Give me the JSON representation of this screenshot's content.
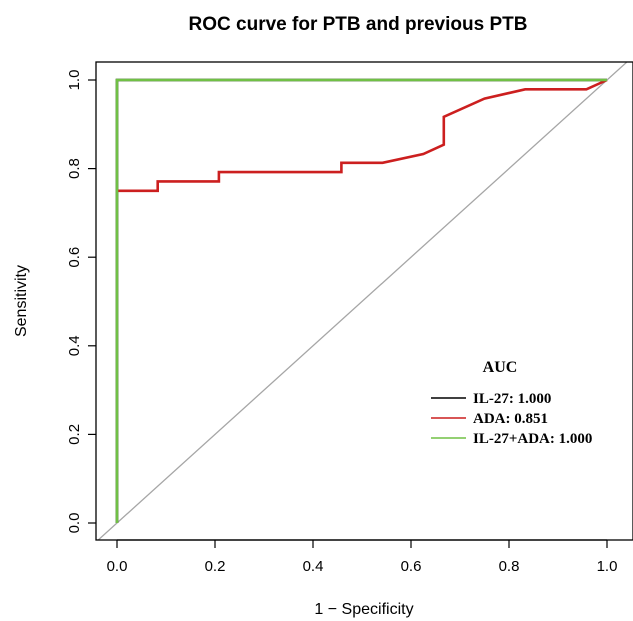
{
  "chart_data": {
    "type": "line",
    "title": "ROC curve for PTB and previous PTB",
    "xlabel": "1 − Specificity",
    "ylabel": "Sensitivity",
    "xlim": [
      -0.04,
      1.04
    ],
    "ylim": [
      -0.04,
      1.04
    ],
    "x_ticks": [
      0.0,
      0.2,
      0.4,
      0.6,
      0.8,
      1.0
    ],
    "y_ticks": [
      0.0,
      0.2,
      0.4,
      0.6,
      0.8,
      1.0
    ],
    "x_tick_labels": [
      "0.0",
      "0.2",
      "0.4",
      "0.6",
      "0.8",
      "1.0"
    ],
    "y_tick_labels": [
      "0.0",
      "0.2",
      "0.4",
      "0.6",
      "0.8",
      "1.0"
    ],
    "reference_line": {
      "color": "#a6a6a6"
    },
    "legend": {
      "title": "AUC",
      "position": "bottom-right",
      "entries": [
        {
          "label": "IL-27: 1.000",
          "color": "#000000"
        },
        {
          "label": "ADA: 0.851",
          "color": "#cc1f1f"
        },
        {
          "label": "IL-27+ADA: 1.000",
          "color": "#70c045"
        }
      ]
    },
    "series": [
      {
        "color": "#000000",
        "x": [
          0,
          0,
          1
        ],
        "y": [
          0,
          1,
          1
        ]
      },
      {
        "color": "#cc1f1f",
        "x": [
          0,
          0.083,
          0.083,
          0.208,
          0.208,
          0.458,
          0.458,
          0.542,
          0.625,
          0.667,
          0.667,
          0.75,
          0.833,
          0.958,
          1.0
        ],
        "y": [
          0.75,
          0.75,
          0.771,
          0.771,
          0.792,
          0.792,
          0.813,
          0.813,
          0.833,
          0.854,
          0.917,
          0.958,
          0.979,
          0.979,
          1.0
        ]
      },
      {
        "color": "#70c045",
        "x": [
          0,
          0,
          1
        ],
        "y": [
          0,
          1,
          1
        ]
      }
    ]
  }
}
